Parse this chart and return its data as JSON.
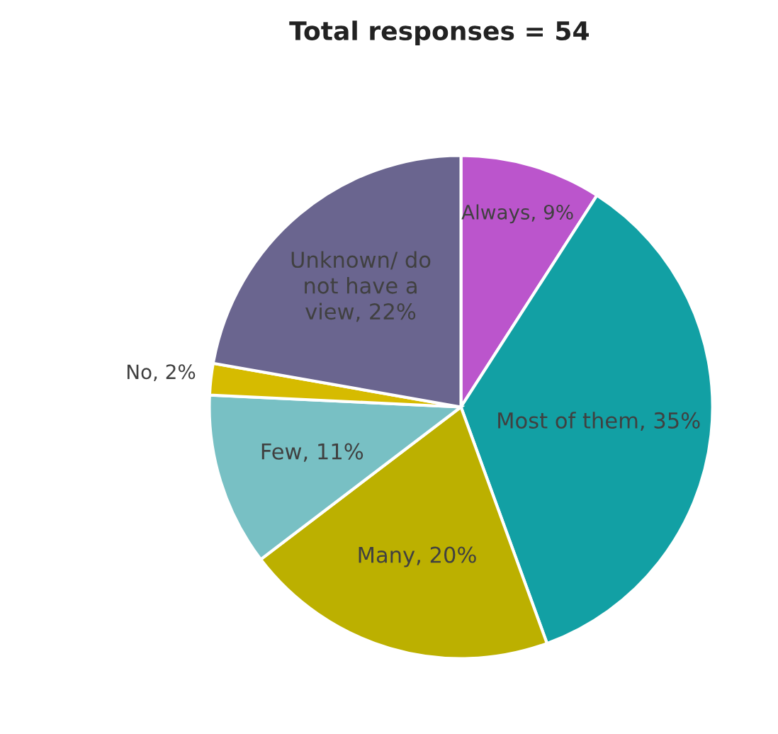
{
  "chart_data": {
    "type": "pie",
    "title": "Total responses = 54",
    "categories": [
      "Always",
      "Most of them",
      "Many",
      "Few",
      "No",
      "Unknown/ do not have a view"
    ],
    "values": [
      9,
      35,
      20,
      11,
      2,
      22
    ],
    "value_labels": [
      "9%",
      "35%",
      "20%",
      "11%",
      "2%",
      "22%"
    ],
    "colors": [
      "#bb55cc",
      "#12a0a4",
      "#bcb000",
      "#78c0c4",
      "#d6bb00",
      "#6a658f"
    ]
  }
}
